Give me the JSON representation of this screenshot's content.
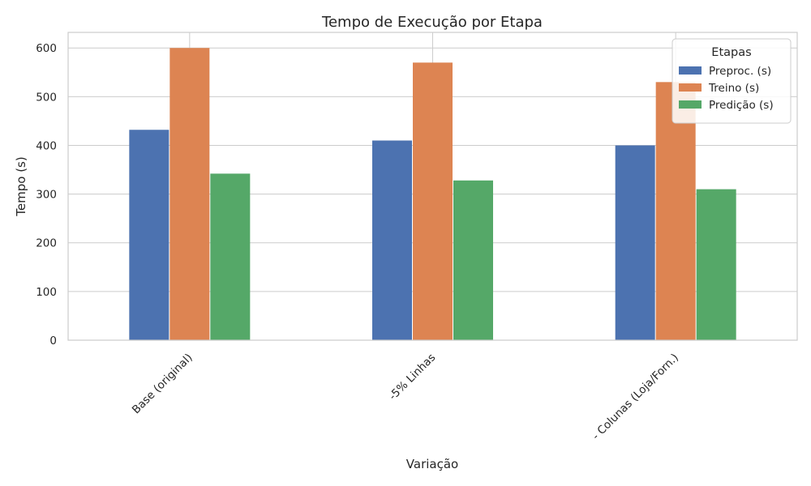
{
  "chart_data": {
    "type": "bar",
    "title": "Tempo de Execução por Etapa",
    "xlabel": "Variação",
    "ylabel": "Tempo (s)",
    "categories": [
      "Base (original)",
      "-5% Linhas",
      "- Colunas (Loja/Forn.)"
    ],
    "series": [
      {
        "name": "Preproc. (s)",
        "color": "#4c72b0",
        "values": [
          432,
          410,
          400
        ]
      },
      {
        "name": "Treino (s)",
        "color": "#dd8452",
        "values": [
          600,
          570,
          530
        ]
      },
      {
        "name": "Predição (s)",
        "color": "#55a868",
        "values": [
          342,
          328,
          310
        ]
      }
    ],
    "ylim": [
      0,
      632
    ],
    "yticks": [
      0,
      100,
      200,
      300,
      400,
      500,
      600
    ],
    "grid": true,
    "legend": {
      "title": "Etapas",
      "placement": "top-right"
    }
  }
}
